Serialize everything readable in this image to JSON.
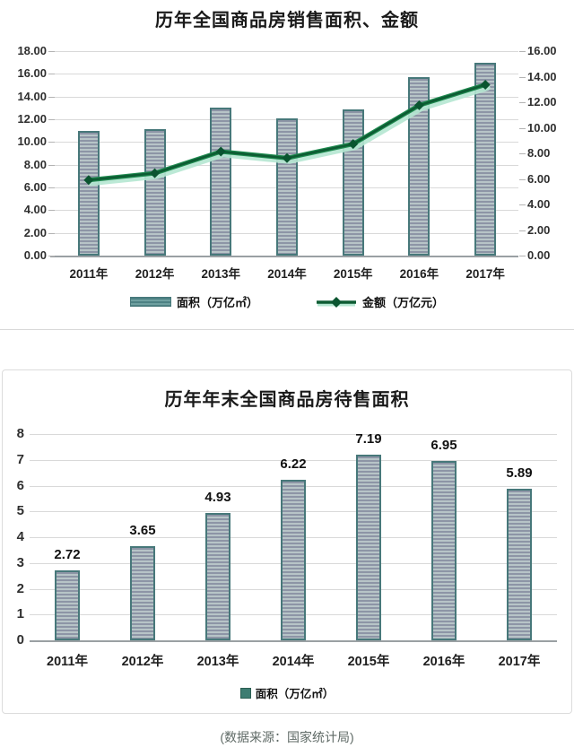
{
  "page": {
    "source_note": "(数据来源：国家统计局)"
  },
  "colors": {
    "bar_border": "#47787a",
    "bar_fill_dark": "#8d95a6",
    "bar_fill_light": "#b7c4c7",
    "swatch_dark": "#4d8183",
    "swatch_light": "#6fa0a0",
    "line_core": "#0d5c33",
    "line_mid": "#1e8a4f",
    "line_glow": "#b5e7d2",
    "marker": "#0a5530",
    "grid": "#d9d9d9",
    "baseline": "#9aa0a3",
    "axis_text": "#2f2f2f",
    "legend_square": "#3e7d72",
    "box_border": "#dcdcdc",
    "source_text": "#5f6a66"
  },
  "chart_data": [
    {
      "type": "combo-bar-line",
      "title": "历年全国商品房销售面积、金额",
      "categories": [
        "2011年",
        "2012年",
        "2013年",
        "2014年",
        "2015年",
        "2016年",
        "2017年"
      ],
      "series": [
        {
          "name": "面积（万亿㎡）",
          "type": "bar",
          "axis": "left",
          "values": [
            10.99,
            11.13,
            13.06,
            12.06,
            12.85,
            15.73,
            16.94
          ]
        },
        {
          "name": "金额（万亿元）",
          "type": "line",
          "axis": "right",
          "values": [
            5.91,
            6.45,
            8.14,
            7.63,
            8.73,
            11.76,
            13.37
          ]
        }
      ],
      "left_axis": {
        "min": 0,
        "max": 18,
        "step": 2,
        "decimals": 2
      },
      "right_axis": {
        "min": 0,
        "max": 16,
        "step": 2,
        "decimals": 2
      },
      "grid": true,
      "legend_position": "bottom"
    },
    {
      "type": "bar",
      "title": "历年年末全国商品房待售面积",
      "categories": [
        "2011年",
        "2012年",
        "2013年",
        "2014年",
        "2015年",
        "2016年",
        "2017年"
      ],
      "values": [
        2.72,
        3.65,
        4.93,
        6.22,
        7.19,
        6.95,
        5.89
      ],
      "data_labels": [
        "2.72",
        "3.65",
        "4.93",
        "6.22",
        "7.19",
        "6.95",
        "5.89"
      ],
      "ylim": [
        0,
        8
      ],
      "step": 1,
      "grid": true,
      "legend": "面积（万亿㎡）",
      "legend_position": "bottom"
    }
  ]
}
